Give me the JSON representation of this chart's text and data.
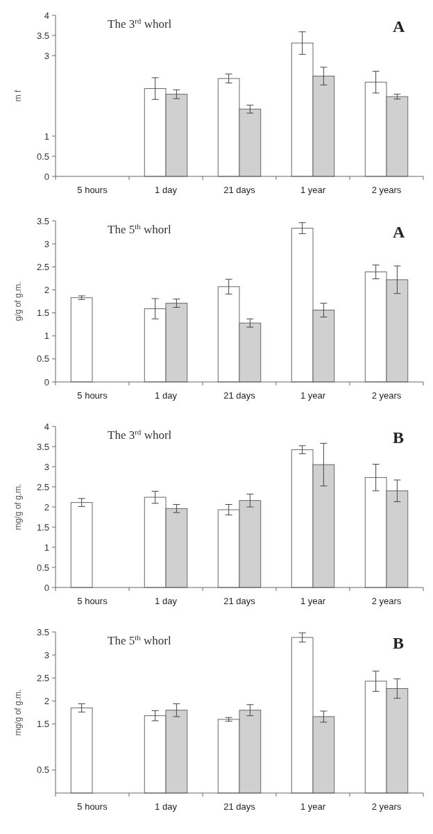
{
  "chart_data": [
    {
      "type": "bar",
      "title": "The 3$^{rd}$ whorl",
      "ylabel": "m f",
      "annotations": [
        "A"
      ],
      "categories": [
        "5 hours",
        "1 day",
        "21 days",
        "1 year",
        "2 years"
      ],
      "ylim": [
        0,
        4
      ],
      "yticks": [
        0,
        0.5,
        1,
        3,
        3.5,
        4
      ],
      "series": [
        {
          "color": "#ffffff",
          "values": [
            null,
            2.18,
            2.43,
            3.31,
            2.34
          ],
          "errors": [
            null,
            0.27,
            0.11,
            0.28,
            0.27
          ]
        },
        {
          "color": "#d0d0d0",
          "values": [
            null,
            2.04,
            1.67,
            2.49,
            1.98
          ],
          "errors": [
            null,
            0.11,
            0.1,
            0.22,
            0.06
          ]
        }
      ]
    },
    {
      "type": "bar",
      "title": "The 5$^{th}$ whorl",
      "ylabel": "g/g of g.m.",
      "annotations": [
        "A"
      ],
      "categories": [
        "5 hours",
        "1 day",
        "21 days",
        "1 year",
        "2 years"
      ],
      "ylim": [
        0,
        3.5
      ],
      "yticks": [
        0,
        0.5,
        1,
        1.5,
        2,
        2.5,
        3,
        3.5
      ],
      "series": [
        {
          "color": "#ffffff",
          "values": [
            1.83,
            1.59,
            2.07,
            3.34,
            2.39
          ],
          "errors": [
            0.04,
            0.22,
            0.16,
            0.12,
            0.15
          ]
        },
        {
          "color": "#d0d0d0",
          "values": [
            0,
            1.71,
            1.28,
            1.56,
            2.22
          ],
          "errors": [
            null,
            0.09,
            0.09,
            0.15,
            0.3
          ]
        }
      ]
    },
    {
      "type": "bar",
      "title": "The 3$^{rd}$ whorl",
      "ylabel": "mg/g of g.m.",
      "annotations": [
        "B"
      ],
      "categories": [
        "5 hours",
        "1 day",
        "21 days",
        "1 year",
        "2 years"
      ],
      "ylim": [
        0,
        4
      ],
      "yticks": [
        0,
        0.5,
        1,
        1.5,
        2,
        2.5,
        3,
        3.5,
        4
      ],
      "series": [
        {
          "color": "#ffffff",
          "values": [
            2.11,
            2.24,
            1.93,
            3.42,
            2.73
          ],
          "errors": [
            0.1,
            0.15,
            0.13,
            0.1,
            0.33
          ]
        },
        {
          "color": "#d0d0d0",
          "values": [
            null,
            1.96,
            2.16,
            3.05,
            2.4
          ],
          "errors": [
            null,
            0.1,
            0.16,
            0.53,
            0.27
          ]
        }
      ]
    },
    {
      "type": "bar",
      "title": "The 5$^{th}$ whorl",
      "ylabel": "mg/g of g.m.",
      "annotations": [
        "B"
      ],
      "categories": [
        "5 hours",
        "1 day",
        "21 days",
        "1 year",
        "2 years"
      ],
      "ylim": [
        0,
        3.5
      ],
      "yticks": [
        0.5,
        1.5,
        2,
        2.5,
        3,
        3.5
      ],
      "series": [
        {
          "color": "#ffffff",
          "values": [
            1.85,
            1.68,
            1.6,
            3.38,
            2.43
          ],
          "errors": [
            0.09,
            0.11,
            0.04,
            0.1,
            0.22
          ]
        },
        {
          "color": "#d0d0d0",
          "values": [
            null,
            1.8,
            1.8,
            1.66,
            2.27
          ],
          "errors": [
            null,
            0.14,
            0.12,
            0.12,
            0.21
          ]
        }
      ]
    }
  ]
}
